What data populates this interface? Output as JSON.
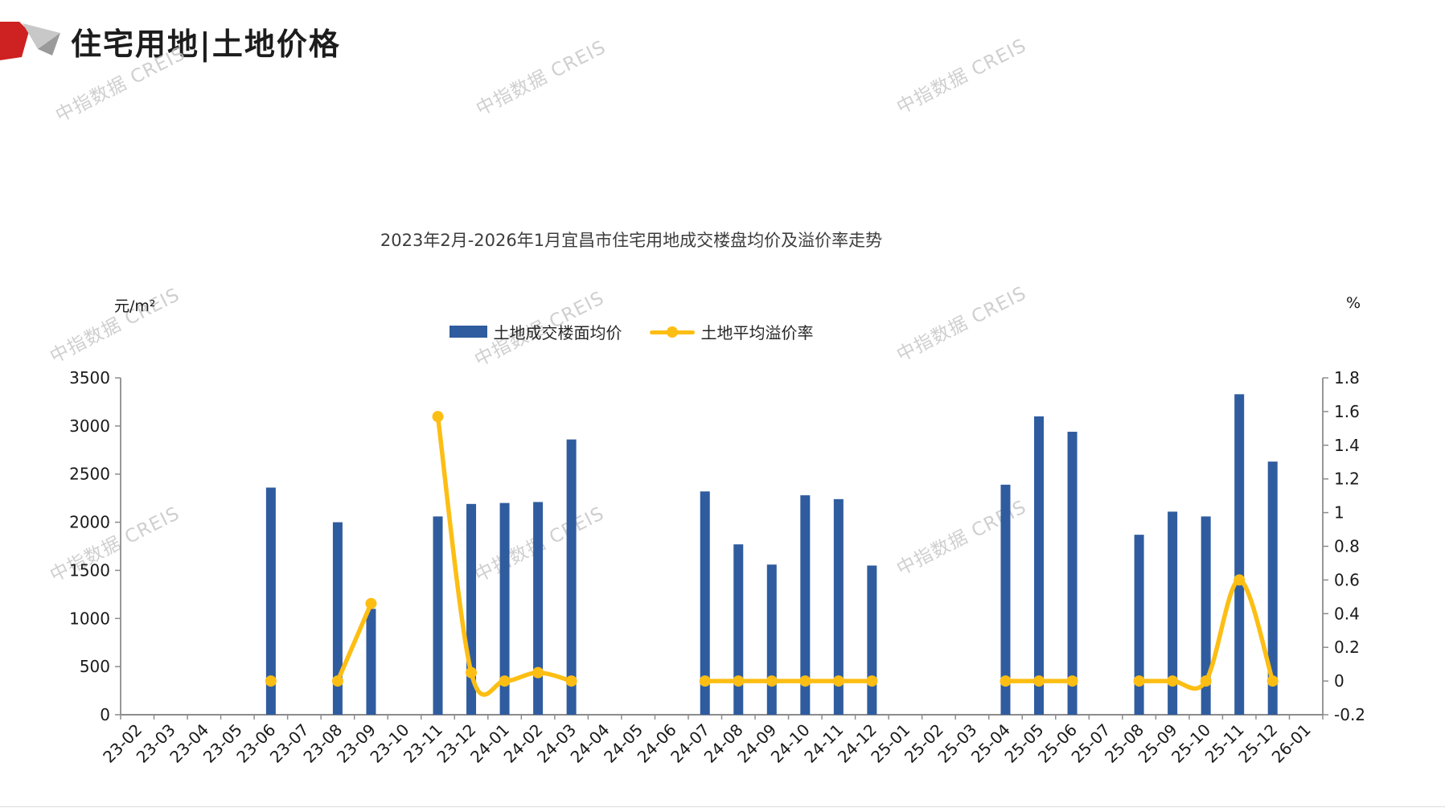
{
  "header": {
    "title": "住宅用地|土地价格"
  },
  "watermark": {
    "text": "中指数据 CREIS"
  },
  "chart": {
    "title": "2023年2月-2026年1月宜昌市住宅用地成交楼盘均价及溢价率走势",
    "left_unit": "元/m²",
    "right_unit": "%"
  },
  "legend": {
    "bar_label": "土地成交楼面均价",
    "line_label": "土地平均溢价率"
  },
  "colors": {
    "bar": "#2F5C9F",
    "line": "#FDBE14",
    "axis": "#8c8c8c",
    "tick_text": "#1a1a1a",
    "logo_red": "#CE2121",
    "logo_light_gray": "#c8c8c8",
    "logo_dark_gray": "#9a9a9a"
  },
  "chart_data": {
    "type": "bar+line",
    "title": "2023年2月-2026年1月宜昌市住宅用地成交楼盘均价及溢价率走势",
    "categories": [
      "23-02",
      "23-03",
      "23-04",
      "23-05",
      "23-06",
      "23-07",
      "23-08",
      "23-09",
      "23-10",
      "23-11",
      "23-12",
      "24-01",
      "24-02",
      "24-03",
      "24-04",
      "24-05",
      "24-06",
      "24-07",
      "24-08",
      "24-09",
      "24-10",
      "24-11",
      "24-12",
      "25-01",
      "25-02",
      "25-03",
      "25-04",
      "25-05",
      "25-06",
      "25-07",
      "25-08",
      "25-09",
      "25-10",
      "25-11",
      "25-12",
      "26-01"
    ],
    "series": [
      {
        "name": "土地成交楼面均价",
        "type": "bar",
        "axis": "left",
        "color": "#2F5C9F",
        "values": [
          null,
          null,
          null,
          null,
          2360,
          null,
          2000,
          1100,
          null,
          2060,
          2190,
          2200,
          2210,
          2860,
          null,
          null,
          null,
          2320,
          1770,
          1560,
          2280,
          2240,
          1550,
          null,
          null,
          null,
          2390,
          3100,
          2940,
          null,
          1870,
          2110,
          2060,
          3330,
          2630,
          null
        ]
      },
      {
        "name": "土地平均溢价率",
        "type": "line",
        "axis": "right",
        "color": "#FDBE14",
        "values": [
          null,
          null,
          null,
          null,
          0,
          null,
          0,
          0.46,
          null,
          1.57,
          0.05,
          0,
          0.05,
          0,
          null,
          null,
          null,
          0,
          0,
          0,
          0,
          0,
          0,
          null,
          null,
          null,
          0,
          0,
          0,
          null,
          0,
          0,
          0,
          0.6,
          0,
          null
        ]
      }
    ],
    "left_axis": {
      "label": "元/m²",
      "min": 0,
      "max": 3500,
      "step": 500
    },
    "right_axis": {
      "label": "%",
      "min": -0.2,
      "max": 1.8,
      "step": 0.2
    },
    "legend_position": "top-center",
    "grid": false,
    "x_label_rotation": -45
  }
}
